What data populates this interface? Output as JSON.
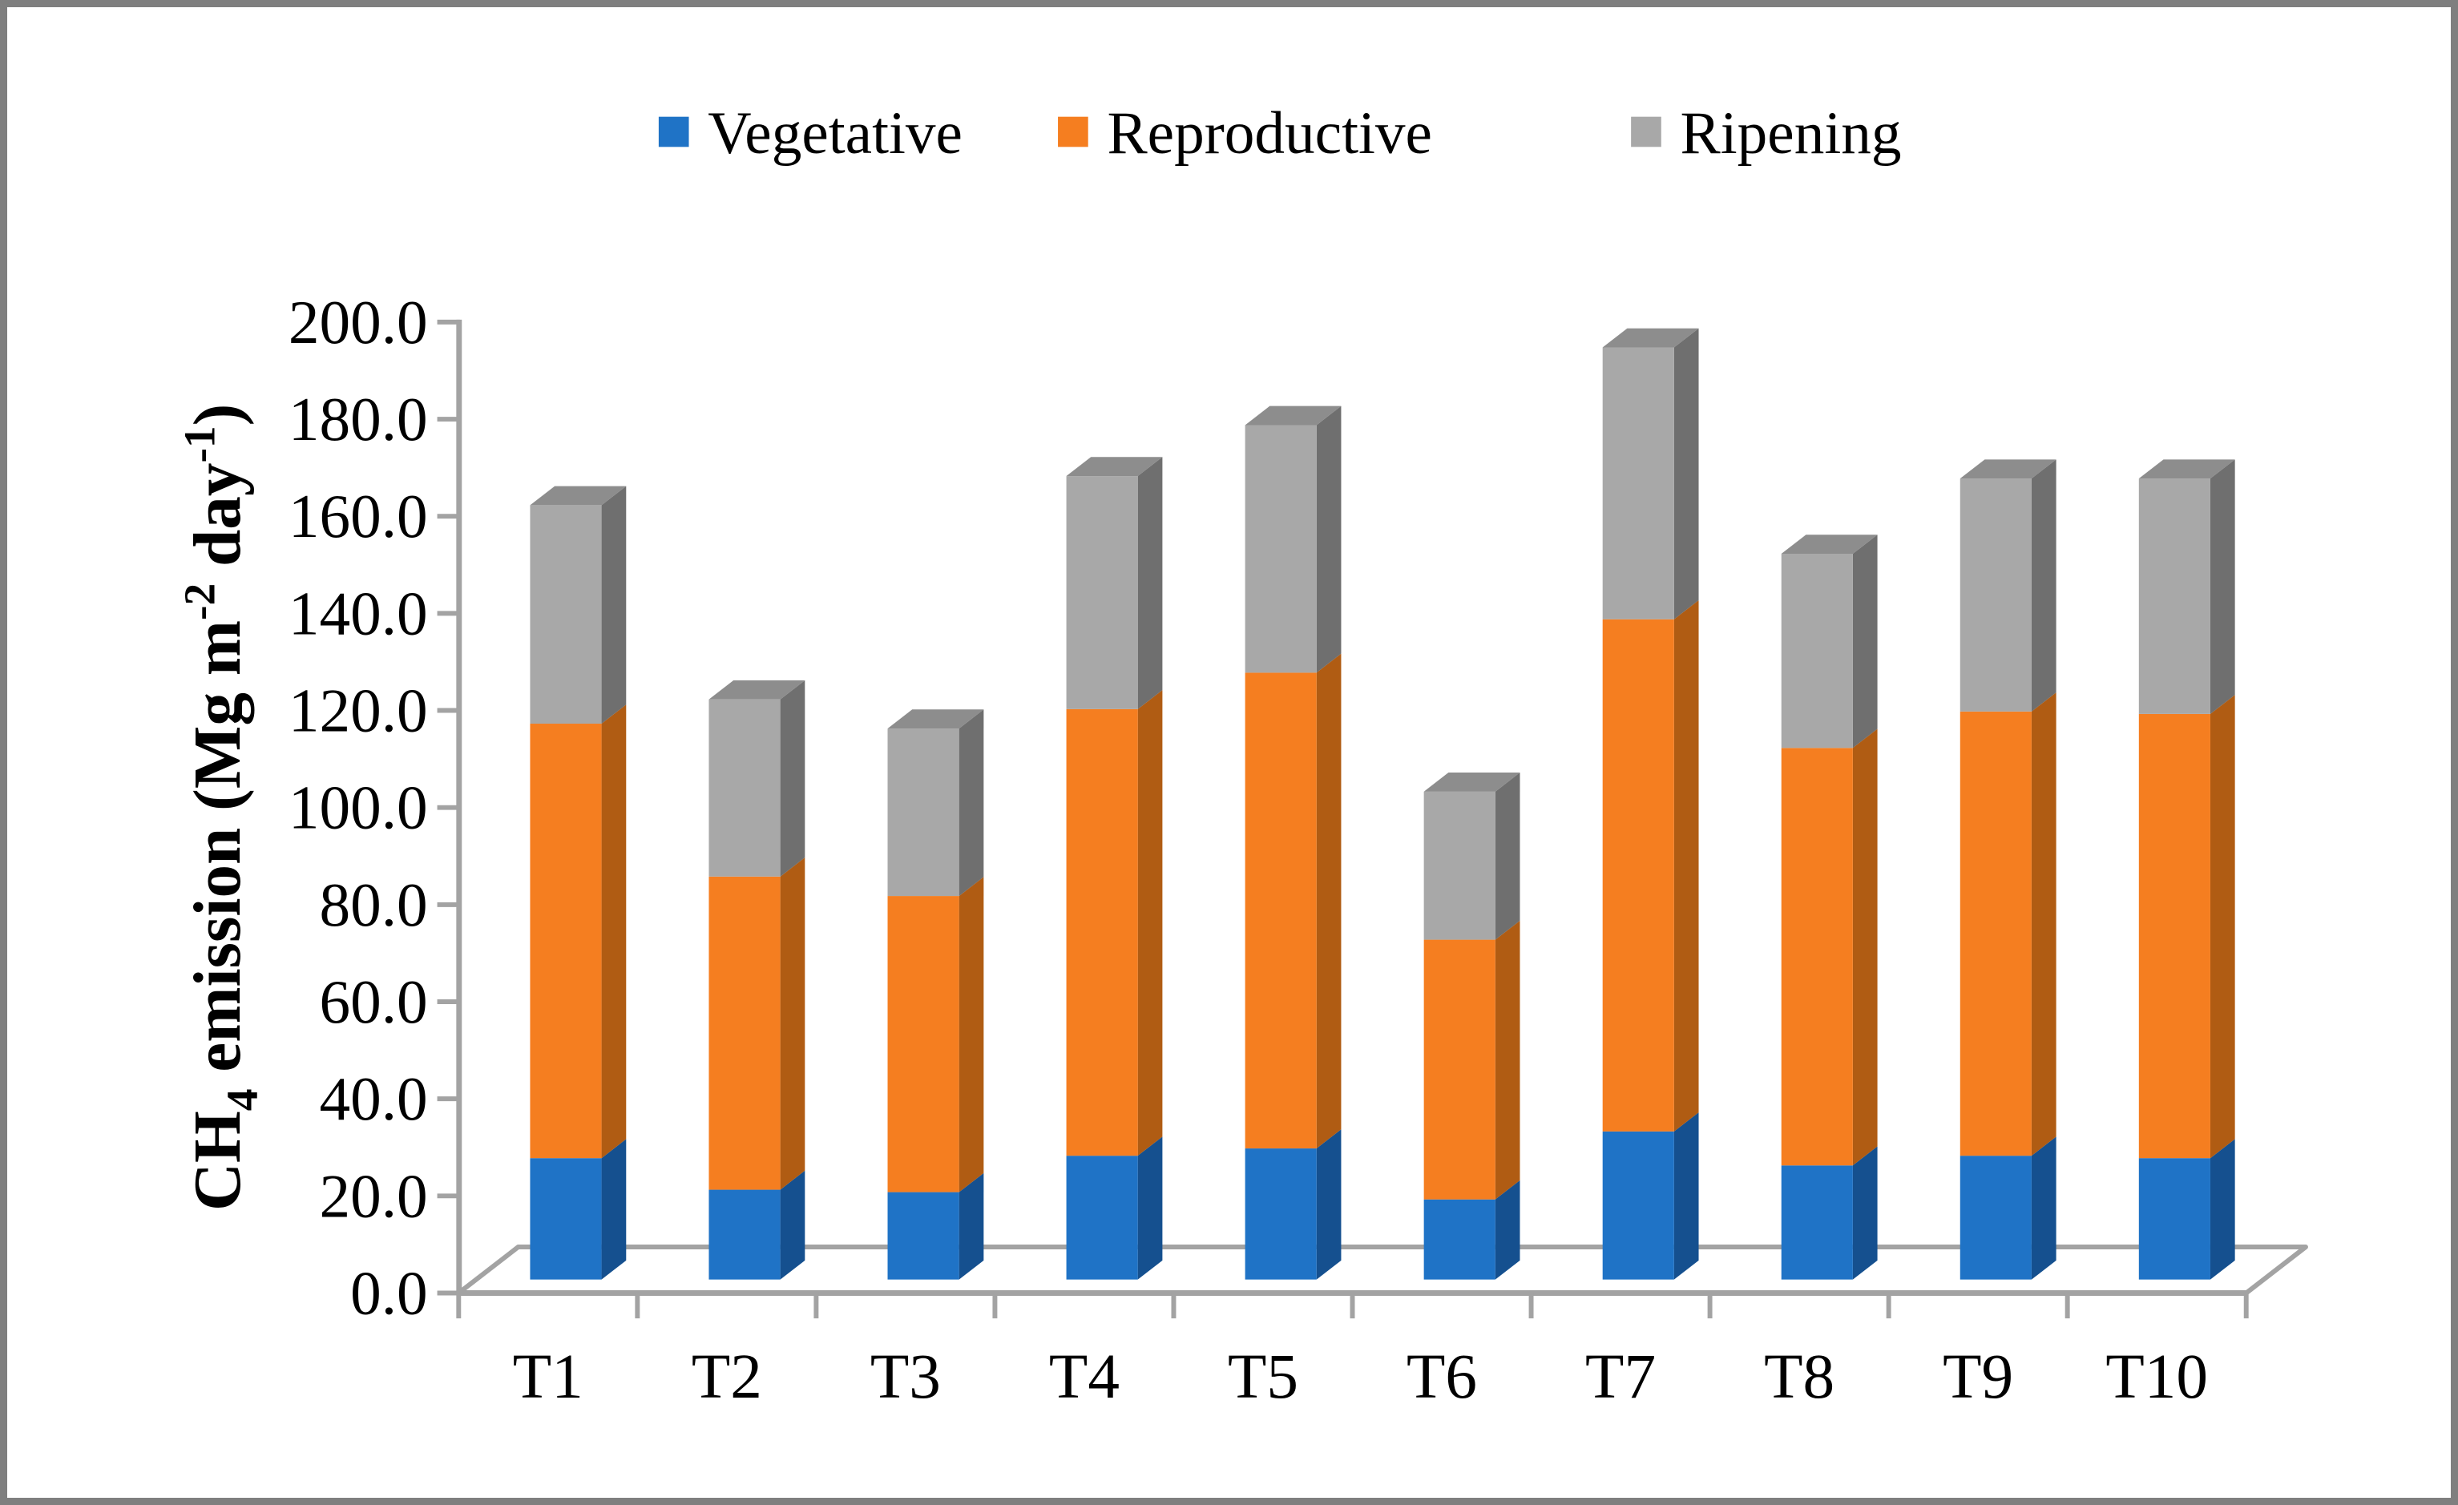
{
  "window": {
    "background_color": "#ffffff",
    "border_color": "#7f7f7f"
  },
  "chart_data": {
    "type": "bar",
    "stacked": true,
    "effect": "3d",
    "grid": false,
    "legend_position": "top",
    "categories": [
      "T1",
      "T2",
      "T3",
      "T4",
      "T5",
      "T6",
      "T7",
      "T8",
      "T9",
      "T10"
    ],
    "series": [
      {
        "name": "Vegetative",
        "color": "#1f73c6",
        "side_color": "#15508f",
        "values": [
          25.0,
          18.5,
          18.0,
          25.5,
          27.0,
          16.5,
          30.5,
          23.5,
          25.5,
          25.0
        ]
      },
      {
        "name": "Reproductive",
        "color": "#f57e20",
        "side_color": "#b05c13",
        "values": [
          89.5,
          64.5,
          61.0,
          92.0,
          98.0,
          53.5,
          105.5,
          86.0,
          91.5,
          91.5
        ]
      },
      {
        "name": "Ripening",
        "color": "#a8a8a8",
        "side_color": "#6f6f6f",
        "top_color": "#8d8d8d",
        "values": [
          45.0,
          36.5,
          34.5,
          48.0,
          51.0,
          30.5,
          56.0,
          40.0,
          48.0,
          48.5
        ]
      }
    ],
    "totals": [
      159.5,
      119.5,
      113.5,
      165.5,
      176.0,
      100.5,
      192.0,
      149.5,
      165.0,
      165.0
    ],
    "ylabel_parts": [
      {
        "text": "CH"
      },
      {
        "text": "4",
        "style": "sub"
      },
      {
        "text": " emission (Mg m"
      },
      {
        "text": "-2",
        "style": "sup"
      },
      {
        "text": " day"
      },
      {
        "text": "-1",
        "style": "sup"
      },
      {
        "text": ")"
      }
    ],
    "y_ticks": [
      "0.0",
      "20.0",
      "40.0",
      "60.0",
      "80.0",
      "100.0",
      "120.0",
      "140.0",
      "160.0",
      "180.0",
      "200.0"
    ],
    "ylim": [
      0,
      200
    ],
    "y_step": 20,
    "xlabel": "",
    "axis_color": "#a3a3a3",
    "text_color": "#000000"
  }
}
